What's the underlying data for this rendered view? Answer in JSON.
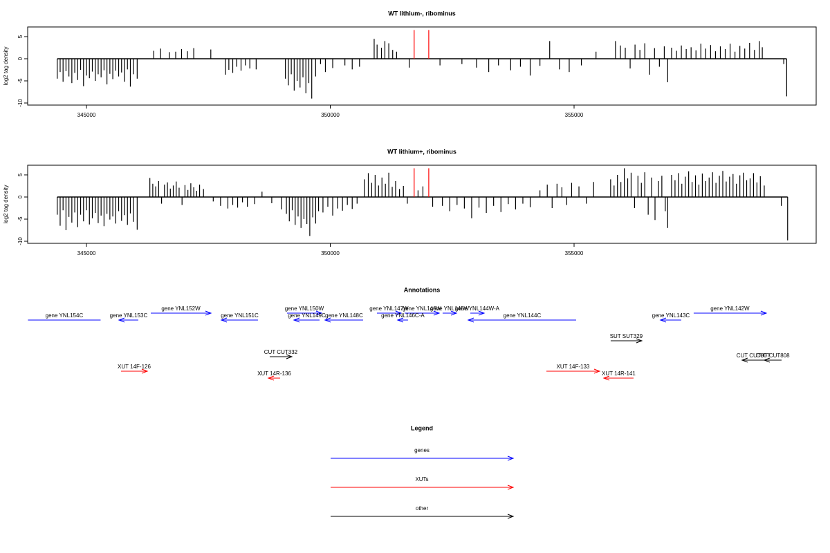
{
  "chart_data": [
    {
      "type": "bar",
      "title": "WT lithium-, ribominus",
      "ylabel": "log2 tag density",
      "xlim": [
        343794,
        359965
      ],
      "ylim": [
        -10.47,
        7.19
      ],
      "xticks": [
        345000,
        350000,
        355000
      ],
      "yticks": [
        -10,
        -5,
        0,
        5
      ],
      "series": [
        {
          "color": "#000000",
          "x": [
            344400,
            344460,
            344520,
            344580,
            344640,
            344700,
            344760,
            344820,
            344880,
            344940,
            345000,
            345060,
            345120,
            345180,
            345240,
            345300,
            345360,
            345420,
            345480,
            345540,
            345600,
            345660,
            345720,
            345780,
            345840,
            345900,
            345960,
            346040,
            346380,
            346520,
            346700,
            346830,
            346950,
            347070,
            347200,
            347550,
            347850,
            347920,
            348000,
            348080,
            348170,
            348260,
            348350,
            348480,
            349080,
            349140,
            349200,
            349260,
            349320,
            349380,
            349440,
            349500,
            349560,
            349620,
            349700,
            349800,
            349900,
            350050,
            350300,
            350450,
            350600,
            350900,
            350960,
            351050,
            351120,
            351200,
            351280,
            351360,
            351620,
            352250,
            352700,
            353000,
            353250,
            353450,
            353700,
            353900,
            354100,
            354300,
            354500,
            354700,
            354900,
            355150,
            355450,
            355850,
            355950,
            356050,
            356150,
            356250,
            356350,
            356450,
            356550,
            356650,
            356750,
            356850,
            356920,
            357000,
            357100,
            357200,
            357300,
            357400,
            357500,
            357600,
            357700,
            357800,
            357900,
            358000,
            358100,
            358200,
            358300,
            358400,
            358500,
            358600,
            358700,
            358800,
            358860,
            359300,
            359360
          ],
          "values": [
            -4.5,
            -3,
            -5.2,
            -2.8,
            -4,
            -5.5,
            -3.2,
            -4.8,
            -2.5,
            -6.2,
            -3.8,
            -4.4,
            -2.9,
            -5,
            -3.5,
            -4.2,
            -2.6,
            -5.8,
            -3.4,
            -4.6,
            -2.7,
            -4,
            -3.1,
            -5.2,
            -2.4,
            -6.3,
            -3.5,
            -4.5,
            1.8,
            2.3,
            1.5,
            1.6,
            2.2,
            1.7,
            2.4,
            2.1,
            -3.6,
            -2.5,
            -3.2,
            -1.8,
            -2.7,
            -1.5,
            -2.2,
            -2.4,
            -4.5,
            -6,
            -3.5,
            -7.2,
            -5,
            -6.5,
            -4.2,
            -7.8,
            -5.5,
            -9,
            -4,
            -1.2,
            -3,
            -2.1,
            -1.5,
            -2.4,
            -1.8,
            4.5,
            3.2,
            2.5,
            4,
            3.5,
            2,
            1.6,
            -2,
            -1.5,
            -1.2,
            -2,
            -3,
            -1.5,
            -2.6,
            -1.8,
            -3.8,
            -1.6,
            4,
            -2.4,
            -3,
            -1.5,
            1.6,
            4,
            3,
            2.5,
            -2.2,
            3.2,
            2,
            3.5,
            -3.6,
            2.4,
            -1.8,
            2.8,
            -5.3,
            2.5,
            1.8,
            3,
            2.2,
            2.6,
            1.9,
            3.4,
            2.3,
            3.1,
            1.7,
            2.8,
            2.2,
            3.4,
            1.6,
            2.9,
            2.3,
            3.6,
            2,
            4,
            2.6,
            -1.2,
            -8.5
          ]
        },
        {
          "color": "#ff0000",
          "x": [
            351720,
            352020
          ],
          "values": [
            6.5,
            6.5
          ]
        }
      ]
    },
    {
      "type": "bar",
      "title": "WT lithium+, ribominus",
      "ylabel": "log2 tag density",
      "xlim": [
        343794,
        359965
      ],
      "ylim": [
        -10.47,
        7.19
      ],
      "xticks": [
        345000,
        350000,
        355000
      ],
      "yticks": [
        -10,
        -5,
        0,
        5
      ],
      "series": [
        {
          "color": "#000000",
          "x": [
            344400,
            344460,
            344520,
            344580,
            344640,
            344700,
            344760,
            344820,
            344880,
            344940,
            345000,
            345060,
            345120,
            345180,
            345240,
            345300,
            345360,
            345420,
            345480,
            345540,
            345600,
            345660,
            345720,
            345780,
            345840,
            345900,
            345960,
            346040,
            346300,
            346360,
            346420,
            346480,
            346540,
            346600,
            346660,
            346720,
            346780,
            346840,
            346900,
            346960,
            347020,
            347080,
            347140,
            347200,
            347260,
            347320,
            347400,
            347600,
            347750,
            347900,
            348000,
            348100,
            348200,
            348300,
            348450,
            348600,
            348800,
            349000,
            349100,
            349160,
            349220,
            349280,
            349340,
            349400,
            349460,
            349520,
            349580,
            349640,
            349700,
            349760,
            349850,
            349950,
            350050,
            350150,
            350250,
            350350,
            350450,
            350550,
            350700,
            350780,
            350850,
            350920,
            350990,
            351060,
            351130,
            351200,
            351270,
            351340,
            351420,
            351500,
            351580,
            351800,
            351900,
            352100,
            352300,
            352450,
            352600,
            352750,
            352900,
            353050,
            353200,
            353350,
            353500,
            353650,
            353800,
            353950,
            354100,
            354300,
            354450,
            354550,
            354650,
            354750,
            354850,
            354950,
            355100,
            355250,
            355400,
            355750,
            355820,
            355890,
            355960,
            356030,
            356100,
            356170,
            356240,
            356310,
            356380,
            356450,
            356520,
            356590,
            356660,
            356730,
            356800,
            356870,
            356920,
            357000,
            357070,
            357140,
            357210,
            357280,
            357350,
            357420,
            357490,
            357560,
            357630,
            357700,
            357770,
            357840,
            357910,
            357980,
            358050,
            358120,
            358190,
            358260,
            358330,
            358400,
            358470,
            358540,
            358610,
            358680,
            358750,
            358820,
            358900,
            359250,
            359380
          ],
          "values": [
            -4,
            -6.5,
            -3,
            -7.5,
            -4.5,
            -5.8,
            -3.5,
            -6.8,
            -4,
            -5.5,
            -3,
            -6.2,
            -4.8,
            -3.6,
            -5.9,
            -4.2,
            -6.6,
            -3.8,
            -5.1,
            -4.4,
            -6,
            -3.2,
            -5.4,
            -4.1,
            -6.3,
            -3.7,
            -5.6,
            -7.4,
            4.3,
            3,
            2.4,
            3.6,
            -1.5,
            2.8,
            3.3,
            1.9,
            2.6,
            3.5,
            2.1,
            -1.8,
            2.7,
            1.6,
            3.1,
            2.2,
            1.4,
            2.8,
            1.8,
            -1,
            -2,
            -2.6,
            -1.8,
            -2.4,
            -1.2,
            -2.2,
            -1.6,
            1.2,
            -1.4,
            -2.8,
            -3.8,
            -5.5,
            -3,
            -6.3,
            -4.4,
            -7,
            -5,
            -6.1,
            -8.8,
            -4.6,
            -6,
            -3.2,
            -3.5,
            -2.2,
            -4.2,
            -2.6,
            -3.1,
            -1.8,
            -2.7,
            -1.5,
            4,
            5.4,
            3.2,
            5,
            2.6,
            4.4,
            3,
            5.5,
            2.3,
            3.6,
            1.8,
            2.5,
            -1.5,
            1.5,
            2.4,
            -2.2,
            -2,
            -3.2,
            -1.8,
            -2.6,
            -4.8,
            -2.4,
            -3.6,
            -2,
            -3.4,
            -1.6,
            -2.8,
            -1.5,
            -2.3,
            1.5,
            2.8,
            -2.5,
            3,
            2.2,
            -1.8,
            3.2,
            2.4,
            -1.5,
            3.4,
            4,
            2.6,
            5,
            3.4,
            6.5,
            4.2,
            5.5,
            -2.5,
            4.8,
            3.2,
            5.6,
            -4,
            4.4,
            -5.2,
            3.6,
            4.8,
            -3.2,
            -7,
            5,
            3.8,
            5.4,
            3,
            4.6,
            5.8,
            3.4,
            4.9,
            2.8,
            5.3,
            3.6,
            4.4,
            5.6,
            3.2,
            4.8,
            5.9,
            3.5,
            4.6,
            5.2,
            3,
            4.9,
            5.5,
            3.8,
            4.2,
            5.4,
            3.3,
            4.7,
            2.6,
            -2,
            -9.8
          ]
        },
        {
          "color": "#ff0000",
          "x": [
            351720,
            352020
          ],
          "values": [
            6.5,
            6.5
          ]
        }
      ]
    }
  ],
  "annotations": {
    "title": "Annotations",
    "xlim": [
      343794,
      359965
    ],
    "features": [
      {
        "label": "gene YNL154C",
        "start": 343800,
        "end": 345290,
        "strand": "-",
        "color": "#0000ff"
      },
      {
        "label": "gene YNL153C",
        "start": 345666,
        "end": 346063,
        "strand": "-",
        "color": "#0000ff"
      },
      {
        "label": "gene YNL152W",
        "start": 346319,
        "end": 347553,
        "strand": "+",
        "color": "#0000ff"
      },
      {
        "label": "gene YNL151C",
        "start": 347766,
        "end": 348517,
        "strand": "-",
        "color": "#0000ff"
      },
      {
        "label": "gene YNL150W",
        "start": 349113,
        "end": 349822,
        "strand": "+",
        "color": "#0000ff"
      },
      {
        "label": "gene YNL149C",
        "start": 349255,
        "end": 349780,
        "strand": "-",
        "color": "#0000ff"
      },
      {
        "label": "gene YNL148C",
        "start": 349893,
        "end": 350673,
        "strand": "-",
        "color": "#0000ff"
      },
      {
        "label": "gene YNL147W",
        "start": 350957,
        "end": 351453,
        "strand": "+",
        "color": "#0000ff"
      },
      {
        "label": "gene YNL146W",
        "start": 351524,
        "end": 352233,
        "strand": "+",
        "color": "#0000ff"
      },
      {
        "label": "gene YNL146C-A",
        "start": 351382,
        "end": 351595,
        "strand": "-",
        "color": "#0000ff"
      },
      {
        "label": "gene YNL145W",
        "start": 352304,
        "end": 352588,
        "strand": "+",
        "color": "#0000ff"
      },
      {
        "label": "gene YNL144W-A",
        "start": 352872,
        "end": 353155,
        "strand": "+",
        "color": "#0000ff"
      },
      {
        "label": "gene YNL144C",
        "start": 352829,
        "end": 355042,
        "strand": "-",
        "color": "#0000ff"
      },
      {
        "label": "gene YNL143C",
        "start": 356772,
        "end": 357198,
        "strand": "-",
        "color": "#0000ff"
      },
      {
        "label": "gene YNL142W",
        "start": 357453,
        "end": 358942,
        "strand": "+",
        "color": "#0000ff"
      },
      {
        "label": "SUT SUT329",
        "start": 355751,
        "end": 356389,
        "strand": "+",
        "color": "#000000"
      },
      {
        "label": "CUT CUT332",
        "start": 348758,
        "end": 349212,
        "strand": "+",
        "color": "#000000"
      },
      {
        "label": "CUT CUT807",
        "start": 358446,
        "end": 358900,
        "strand": "-",
        "color": "#000000"
      },
      {
        "label": "CUT CUT808",
        "start": 358900,
        "end": 359255,
        "strand": "-",
        "color": "#000000"
      },
      {
        "label": "XUT 14F-126",
        "start": 345709,
        "end": 346248,
        "strand": "+",
        "color": "#ff0000"
      },
      {
        "label": "XUT 14R-136",
        "start": 348730,
        "end": 348971,
        "strand": "-",
        "color": "#ff0000"
      },
      {
        "label": "XUT 14F-133",
        "start": 354432,
        "end": 355524,
        "strand": "+",
        "color": "#ff0000"
      },
      {
        "label": "XUT 14R-141",
        "start": 355609,
        "end": 356219,
        "strand": "-",
        "color": "#ff0000"
      }
    ]
  },
  "legend": {
    "title": "Legend",
    "items": [
      {
        "label": "genes",
        "color": "#0000ff"
      },
      {
        "label": "XUTs",
        "color": "#ff0000"
      },
      {
        "label": "other",
        "color": "#000000"
      }
    ]
  }
}
